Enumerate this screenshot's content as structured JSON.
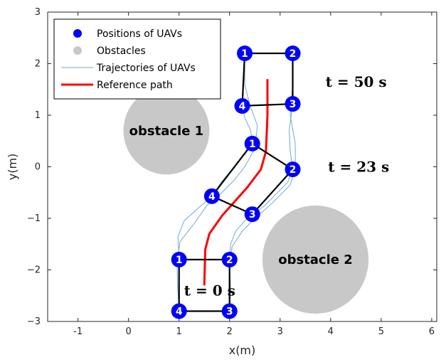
{
  "chart_data": {
    "type": "scatter",
    "xlabel": "x(m)",
    "ylabel": "y(m)",
    "xlim": [
      -1.6,
      6.1
    ],
    "ylim": [
      -3,
      3
    ],
    "xticks": [
      -1,
      0,
      1,
      2,
      3,
      4,
      5,
      6
    ],
    "yticks": [
      -3,
      -2,
      -1,
      0,
      1,
      2,
      3
    ],
    "grid": false,
    "legend_position": "top-left",
    "legend": [
      {
        "name": "Positions of UAVs",
        "kind": "marker",
        "color": "#0000ff"
      },
      {
        "name": "Obstacles",
        "kind": "marker",
        "color": "#c8c8c8"
      },
      {
        "name": "Trajectories of UAVs",
        "kind": "line",
        "color": "#6fa8dc"
      },
      {
        "name": "Reference path",
        "kind": "line",
        "color": "#ff0000"
      }
    ],
    "obstacles": [
      {
        "label": "obstacle 1",
        "cx": 0.75,
        "cy": 0.7,
        "r": 0.85
      },
      {
        "label": "obstacle 2",
        "cx": 3.7,
        "cy": -1.8,
        "r": 1.05
      }
    ],
    "formations": [
      {
        "label": "t = 0 s",
        "label_pos": [
          1.1,
          -2.4
        ],
        "uavs": [
          {
            "id": "1",
            "x": 1.0,
            "y": -1.8
          },
          {
            "id": "2",
            "x": 2.0,
            "y": -1.8
          },
          {
            "id": "3",
            "x": 2.0,
            "y": -2.8
          },
          {
            "id": "4",
            "x": 1.0,
            "y": -2.8
          }
        ]
      },
      {
        "label": "t = 23 s",
        "label_pos": [
          3.95,
          0.0
        ],
        "uavs": [
          {
            "id": "1",
            "x": 2.45,
            "y": 0.45
          },
          {
            "id": "2",
            "x": 3.25,
            "y": -0.05
          },
          {
            "id": "3",
            "x": 2.45,
            "y": -0.92
          },
          {
            "id": "4",
            "x": 1.65,
            "y": -0.57
          }
        ]
      },
      {
        "label": "t = 50 s",
        "label_pos": [
          3.9,
          1.65
        ],
        "uavs": [
          {
            "id": "1",
            "x": 2.3,
            "y": 2.2
          },
          {
            "id": "2",
            "x": 3.25,
            "y": 2.2
          },
          {
            "id": "3",
            "x": 3.25,
            "y": 1.22
          },
          {
            "id": "4",
            "x": 2.25,
            "y": 1.18
          }
        ]
      }
    ],
    "reference_path": [
      [
        1.5,
        -2.3
      ],
      [
        1.52,
        -1.6
      ],
      [
        1.6,
        -1.3
      ],
      [
        1.85,
        -0.95
      ],
      [
        2.35,
        -0.4
      ],
      [
        2.62,
        -0.05
      ],
      [
        2.72,
        0.3
      ],
      [
        2.75,
        1.0
      ],
      [
        2.75,
        1.7
      ]
    ],
    "trajectories": [
      [
        [
          1.0,
          -1.8
        ],
        [
          0.98,
          -1.35
        ],
        [
          1.1,
          -1.05
        ],
        [
          1.38,
          -0.8
        ],
        [
          1.6,
          -0.62
        ],
        [
          1.65,
          -0.57
        ],
        [
          1.85,
          -0.28
        ],
        [
          2.1,
          0.0
        ],
        [
          2.3,
          0.25
        ],
        [
          2.45,
          0.45
        ],
        [
          2.42,
          0.7
        ],
        [
          2.3,
          0.95
        ],
        [
          2.25,
          1.18
        ]
      ],
      [
        [
          1.0,
          -2.8
        ],
        [
          0.97,
          -2.3
        ],
        [
          0.96,
          -1.85
        ],
        [
          1.02,
          -1.45
        ],
        [
          1.3,
          -1.1
        ],
        [
          1.55,
          -0.75
        ],
        [
          1.8,
          -0.55
        ],
        [
          2.1,
          -0.25
        ],
        [
          2.3,
          0.0
        ],
        [
          2.5,
          0.35
        ],
        [
          2.55,
          0.8
        ],
        [
          2.4,
          1.2
        ],
        [
          2.3,
          1.6
        ],
        [
          2.3,
          2.2
        ]
      ],
      [
        [
          2.0,
          -1.8
        ],
        [
          2.02,
          -1.5
        ],
        [
          2.12,
          -1.25
        ],
        [
          2.3,
          -1.05
        ],
        [
          2.45,
          -0.92
        ],
        [
          2.7,
          -0.75
        ],
        [
          2.95,
          -0.5
        ],
        [
          3.15,
          -0.3
        ],
        [
          3.25,
          -0.05
        ],
        [
          3.2,
          0.3
        ],
        [
          3.18,
          0.7
        ],
        [
          3.25,
          1.22
        ]
      ],
      [
        [
          2.0,
          -2.8
        ],
        [
          2.02,
          -2.35
        ],
        [
          2.0,
          -1.95
        ],
        [
          2.05,
          -1.55
        ],
        [
          2.25,
          -1.25
        ],
        [
          2.5,
          -1.0
        ],
        [
          2.85,
          -0.7
        ],
        [
          3.2,
          -0.35
        ],
        [
          3.3,
          -0.05
        ],
        [
          3.3,
          0.45
        ],
        [
          3.2,
          1.0
        ],
        [
          3.25,
          1.6
        ],
        [
          3.25,
          2.2
        ]
      ]
    ]
  }
}
